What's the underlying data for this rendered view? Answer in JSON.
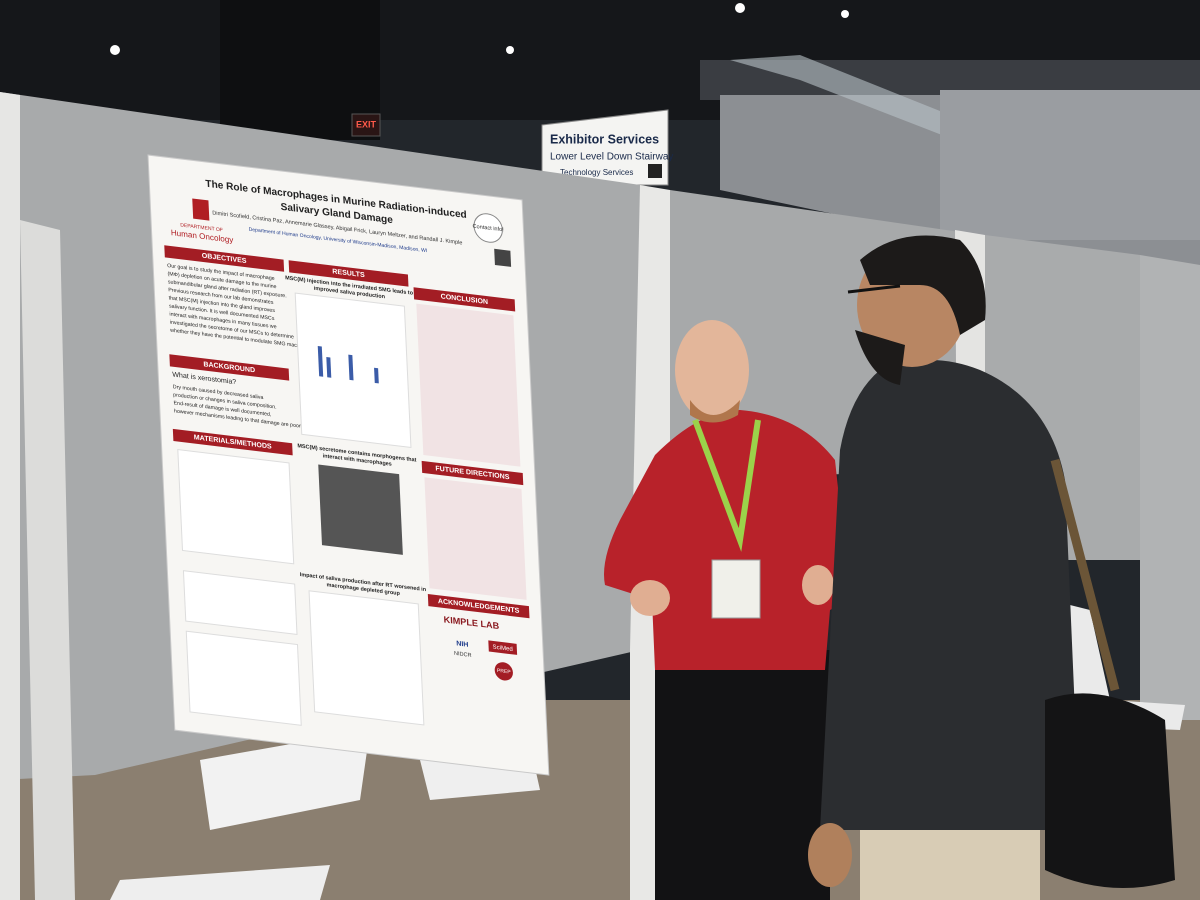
{
  "exit_sign": "EXIT",
  "direction_sign": {
    "title": "Exhibitor Services",
    "line_1": "Lower Level Down Stairway",
    "line_2": "Technology Services"
  },
  "poster": {
    "title": [
      "The Role of Macrophages in Murine Radiation-induced",
      "Salivary Gland Damage"
    ],
    "logo": [
      "DEPARTMENT OF",
      "Human Oncology"
    ],
    "authors": "Dimitri Scofield, Cristina Paz, Annemarie Glassey, Abigail Frick, Lauryn Meltzer, and Randall J. Kimple",
    "affiliation": "Department of Human Oncology, University of Wisconsin-Madison, Madison, WI",
    "contact": "Contact info!",
    "objectives": {
      "header": "OBJECTIVES",
      "lines": [
        "Our goal is to study the impact of macrophage",
        "(MΦ) depletion on acute damage to the murine",
        "submandibular gland after radiation (RT) exposure.",
        "Previous research from our lab demonstrates",
        "that MSC(M) injection into the gland improves",
        "salivary function. It is well documented MSCs",
        "interact with macrophages in many tissues we",
        "investigated the secretome of our MSCs to determine",
        "whether they have the potential to modulate SMG macrophages."
      ]
    },
    "background": {
      "header": "BACKGROUND",
      "question": "What is xerostomia?",
      "lines": [
        "Dry mouth caused by decreased saliva",
        "production or changes in saliva composition.",
        "End-result of damage is well documented,",
        "however mechanisms leading to that damage are poorly understood."
      ]
    },
    "methods": {
      "header": "MATERIALS/METHODS"
    },
    "results": {
      "header": "RESULTS",
      "headings": [
        [
          "MSC(M) injection into the irradiated SMG leads to",
          "improved saliva production"
        ],
        [
          "MSC(M) secretome contains morphogens that",
          "interact with macrophages"
        ],
        [
          "Impact of saliva production after RT worsened in",
          "macrophage depleted group"
        ]
      ]
    },
    "conclusion": {
      "header": "CONCLUSION"
    },
    "future_directions": {
      "header": "FUTURE DIRECTIONS"
    },
    "acknowledgements": {
      "header": "ACKNOWLEDGEMENTS",
      "sponsors": [
        "KIMPLE LAB",
        "NIH",
        "NIDCR",
        "SciMed",
        "PREP"
      ]
    }
  }
}
